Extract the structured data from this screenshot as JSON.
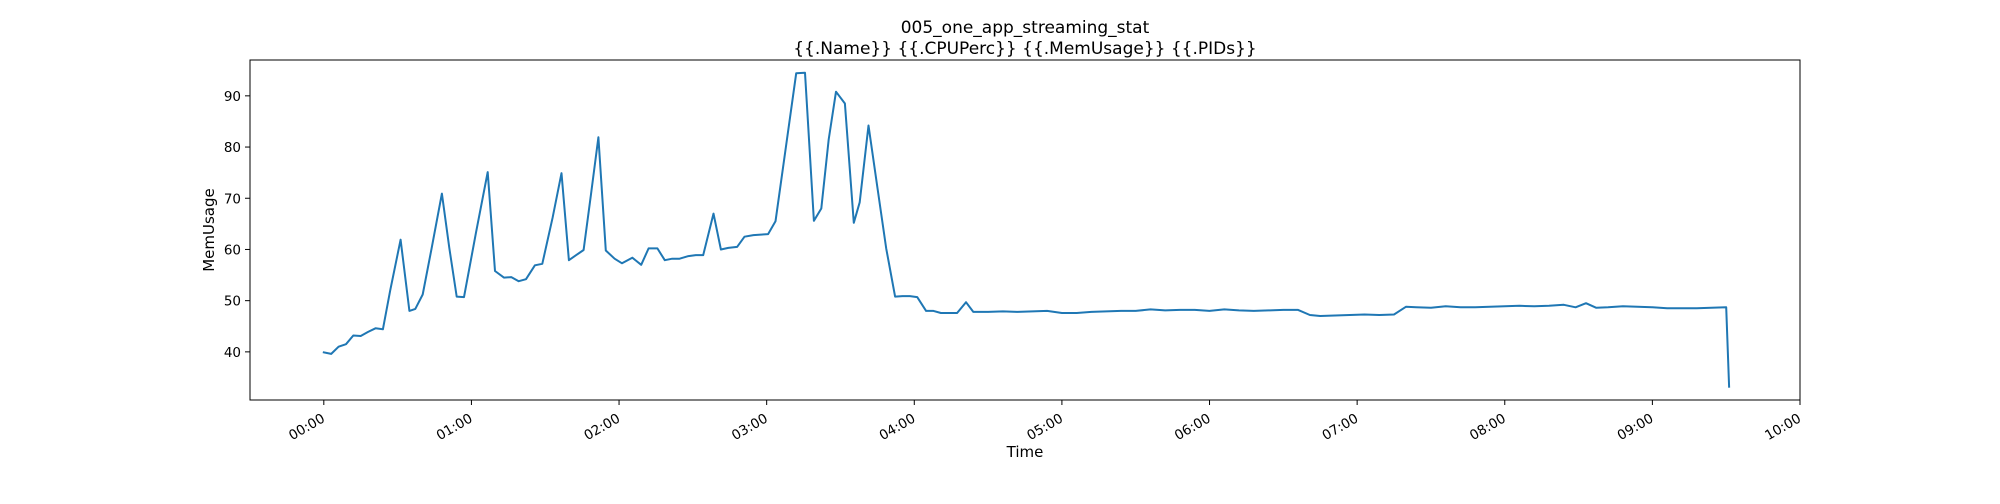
{
  "chart_data": {
    "type": "line",
    "title": "005_one_app_streaming_stat",
    "subtitle": "{{.Name}} {{.CPUPerc}} {{.MemUsage}}  {{.PIDs}}",
    "xlabel": "Time",
    "ylabel": "MemUsage",
    "x_unit": "hours",
    "xlim": [
      -0.5,
      10.0
    ],
    "ylim": [
      30.6,
      97.0
    ],
    "grid": false,
    "x_ticks": [
      {
        "value": 0,
        "label": "00:00"
      },
      {
        "value": 1,
        "label": "01:00"
      },
      {
        "value": 2,
        "label": "02:00"
      },
      {
        "value": 3,
        "label": "03:00"
      },
      {
        "value": 4,
        "label": "04:00"
      },
      {
        "value": 5,
        "label": "05:00"
      },
      {
        "value": 6,
        "label": "06:00"
      },
      {
        "value": 7,
        "label": "07:00"
      },
      {
        "value": 8,
        "label": "08:00"
      },
      {
        "value": 9,
        "label": "09:00"
      },
      {
        "value": 10,
        "label": "10:00"
      }
    ],
    "y_ticks": [
      {
        "value": 40,
        "label": "40"
      },
      {
        "value": 50,
        "label": "50"
      },
      {
        "value": 60,
        "label": "60"
      },
      {
        "value": 70,
        "label": "70"
      },
      {
        "value": 80,
        "label": "80"
      },
      {
        "value": 90,
        "label": "90"
      }
    ],
    "series": [
      {
        "color": "#1f77b4",
        "points": [
          [
            0.0,
            39.9
          ],
          [
            0.05,
            39.6
          ],
          [
            0.1,
            41.0
          ],
          [
            0.15,
            41.5
          ],
          [
            0.2,
            43.2
          ],
          [
            0.25,
            43.1
          ],
          [
            0.3,
            43.9
          ],
          [
            0.35,
            44.6
          ],
          [
            0.4,
            44.4
          ],
          [
            0.45,
            52.0
          ],
          [
            0.52,
            61.9
          ],
          [
            0.58,
            48.0
          ],
          [
            0.62,
            48.4
          ],
          [
            0.67,
            51.2
          ],
          [
            0.73,
            60.2
          ],
          [
            0.8,
            70.9
          ],
          [
            0.85,
            60.3
          ],
          [
            0.9,
            50.8
          ],
          [
            0.95,
            50.7
          ],
          [
            1.03,
            63.2
          ],
          [
            1.11,
            75.1
          ],
          [
            1.16,
            55.8
          ],
          [
            1.22,
            54.5
          ],
          [
            1.27,
            54.6
          ],
          [
            1.32,
            53.8
          ],
          [
            1.37,
            54.2
          ],
          [
            1.43,
            56.9
          ],
          [
            1.48,
            57.2
          ],
          [
            1.55,
            66.2
          ],
          [
            1.61,
            74.9
          ],
          [
            1.66,
            57.9
          ],
          [
            1.71,
            58.9
          ],
          [
            1.76,
            59.9
          ],
          [
            1.81,
            70.8
          ],
          [
            1.86,
            81.9
          ],
          [
            1.91,
            59.8
          ],
          [
            1.97,
            58.2
          ],
          [
            2.02,
            57.3
          ],
          [
            2.09,
            58.4
          ],
          [
            2.15,
            57.0
          ],
          [
            2.2,
            60.2
          ],
          [
            2.26,
            60.2
          ],
          [
            2.31,
            57.9
          ],
          [
            2.36,
            58.2
          ],
          [
            2.41,
            58.2
          ],
          [
            2.47,
            58.7
          ],
          [
            2.52,
            58.9
          ],
          [
            2.57,
            58.9
          ],
          [
            2.64,
            67.0
          ],
          [
            2.69,
            60.0
          ],
          [
            2.74,
            60.3
          ],
          [
            2.8,
            60.5
          ],
          [
            2.85,
            62.5
          ],
          [
            2.91,
            62.8
          ],
          [
            2.96,
            62.9
          ],
          [
            3.01,
            63.0
          ],
          [
            3.06,
            65.5
          ],
          [
            3.13,
            80.0
          ],
          [
            3.2,
            94.4
          ],
          [
            3.26,
            94.5
          ],
          [
            3.32,
            65.6
          ],
          [
            3.37,
            68.0
          ],
          [
            3.42,
            81.5
          ],
          [
            3.47,
            90.8
          ],
          [
            3.53,
            88.5
          ],
          [
            3.59,
            65.2
          ],
          [
            3.63,
            69.2
          ],
          [
            3.69,
            84.2
          ],
          [
            3.75,
            72.1
          ],
          [
            3.81,
            60.2
          ],
          [
            3.87,
            50.8
          ],
          [
            3.92,
            50.9
          ],
          [
            3.97,
            50.9
          ],
          [
            4.02,
            50.7
          ],
          [
            4.08,
            48.0
          ],
          [
            4.13,
            48.0
          ],
          [
            4.18,
            47.6
          ],
          [
            4.23,
            47.6
          ],
          [
            4.29,
            47.6
          ],
          [
            4.35,
            49.7
          ],
          [
            4.4,
            47.8
          ],
          [
            4.5,
            47.8
          ],
          [
            4.6,
            47.9
          ],
          [
            4.7,
            47.8
          ],
          [
            4.8,
            47.9
          ],
          [
            4.9,
            48.0
          ],
          [
            5.0,
            47.6
          ],
          [
            5.1,
            47.6
          ],
          [
            5.2,
            47.8
          ],
          [
            5.3,
            47.9
          ],
          [
            5.4,
            48.0
          ],
          [
            5.5,
            48.0
          ],
          [
            5.6,
            48.3
          ],
          [
            5.7,
            48.1
          ],
          [
            5.8,
            48.2
          ],
          [
            5.9,
            48.2
          ],
          [
            6.0,
            48.0
          ],
          [
            6.1,
            48.3
          ],
          [
            6.2,
            48.1
          ],
          [
            6.3,
            48.0
          ],
          [
            6.4,
            48.1
          ],
          [
            6.5,
            48.2
          ],
          [
            6.6,
            48.2
          ],
          [
            6.68,
            47.2
          ],
          [
            6.75,
            47.0
          ],
          [
            6.85,
            47.1
          ],
          [
            6.95,
            47.2
          ],
          [
            7.05,
            47.3
          ],
          [
            7.15,
            47.2
          ],
          [
            7.25,
            47.3
          ],
          [
            7.33,
            48.8
          ],
          [
            7.4,
            48.7
          ],
          [
            7.5,
            48.6
          ],
          [
            7.6,
            48.9
          ],
          [
            7.7,
            48.7
          ],
          [
            7.8,
            48.7
          ],
          [
            7.9,
            48.8
          ],
          [
            8.0,
            48.9
          ],
          [
            8.1,
            49.0
          ],
          [
            8.2,
            48.9
          ],
          [
            8.3,
            49.0
          ],
          [
            8.4,
            49.2
          ],
          [
            8.48,
            48.7
          ],
          [
            8.55,
            49.5
          ],
          [
            8.62,
            48.6
          ],
          [
            8.7,
            48.7
          ],
          [
            8.8,
            48.9
          ],
          [
            8.9,
            48.8
          ],
          [
            9.0,
            48.7
          ],
          [
            9.1,
            48.5
          ],
          [
            9.2,
            48.5
          ],
          [
            9.3,
            48.5
          ],
          [
            9.4,
            48.6
          ],
          [
            9.5,
            48.7
          ],
          [
            9.52,
            33.2
          ]
        ]
      }
    ]
  }
}
